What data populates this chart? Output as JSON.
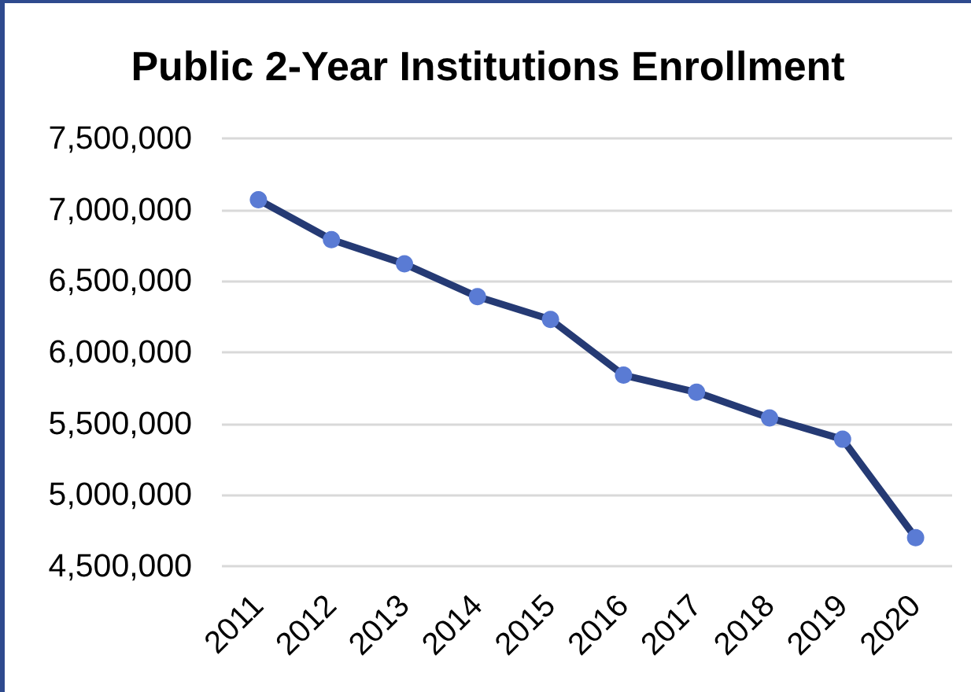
{
  "chart_data": {
    "type": "line",
    "title": "Public 2-Year Institutions Enrollment",
    "categories": [
      "2011",
      "2012",
      "2013",
      "2014",
      "2015",
      "2016",
      "2017",
      "2018",
      "2019",
      "2020"
    ],
    "series": [
      {
        "color": "#253a74",
        "colors": [
          "#5a7bd4",
          "#5a7bd4",
          "#5a7bd4",
          "#5a7bd4",
          "#5a7bd4",
          "#5a7bd4",
          "#5a7bd4",
          "#5a7bd4",
          "#5a7bd4",
          "#5a7bd4"
        ],
        "values": [
          7070000,
          6790000,
          6620000,
          6390000,
          6230000,
          5840000,
          5720000,
          5540000,
          5390000,
          4700000
        ]
      }
    ],
    "ylim": [
      4500000,
      7500000
    ],
    "yticks": [
      {
        "value": 4500000,
        "label": "4,500,000"
      },
      {
        "value": 5000000,
        "label": "5,000,000"
      },
      {
        "value": 5500000,
        "label": "5,500,000"
      },
      {
        "value": 6000000,
        "label": "6,000,000"
      },
      {
        "value": 6500000,
        "label": "6,500,000"
      },
      {
        "value": 7000000,
        "label": "7,000,000"
      },
      {
        "value": 7500000,
        "label": "7,500,000"
      }
    ],
    "grid": "y",
    "marker": "circle",
    "line_style": "solid"
  }
}
